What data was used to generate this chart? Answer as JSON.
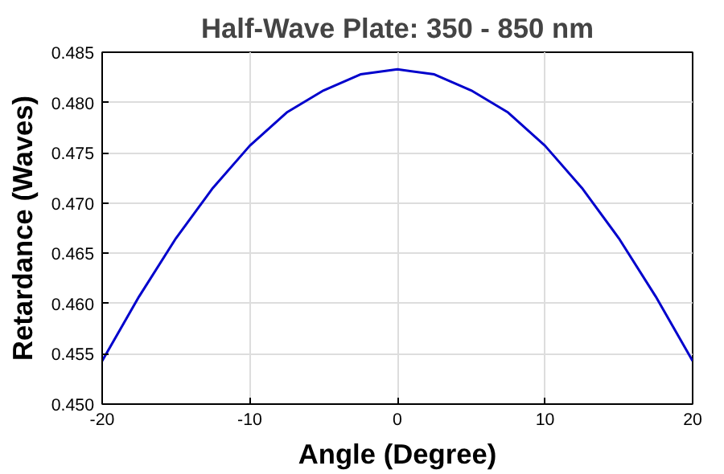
{
  "chart_data": {
    "type": "line",
    "title": "Half-Wave Plate: 350 - 850 nm",
    "xlabel": "Angle (Degree)",
    "ylabel": "Retardance (Waves)",
    "x": [
      -20,
      -17.5,
      -15,
      -12.5,
      -10,
      -7.5,
      -5,
      -2.5,
      0,
      2.5,
      5,
      7.5,
      10,
      12.5,
      15,
      17.5,
      20
    ],
    "series": [
      {
        "color": "#0000cc",
        "values": [
          0.4543,
          0.4607,
          0.4665,
          0.4715,
          0.4757,
          0.479,
          0.4812,
          0.4828,
          0.4833,
          0.4828,
          0.4812,
          0.479,
          0.4757,
          0.4715,
          0.4665,
          0.4607,
          0.4543
        ]
      }
    ],
    "xlim": [
      -20,
      20
    ],
    "xticks": [
      -20,
      -10,
      0,
      10,
      20
    ],
    "ylim": [
      0.45,
      0.485
    ],
    "yticks": [
      {
        "value": 0.45,
        "label": "0.450"
      },
      0.455,
      {
        "value": 0.46,
        "label": "0.460"
      },
      0.465,
      {
        "value": 0.47,
        "label": "0.470"
      },
      0.475,
      {
        "value": 0.48,
        "label": "0.480"
      },
      0.485
    ],
    "grid": true,
    "marker": "none",
    "line_style": "solid"
  }
}
